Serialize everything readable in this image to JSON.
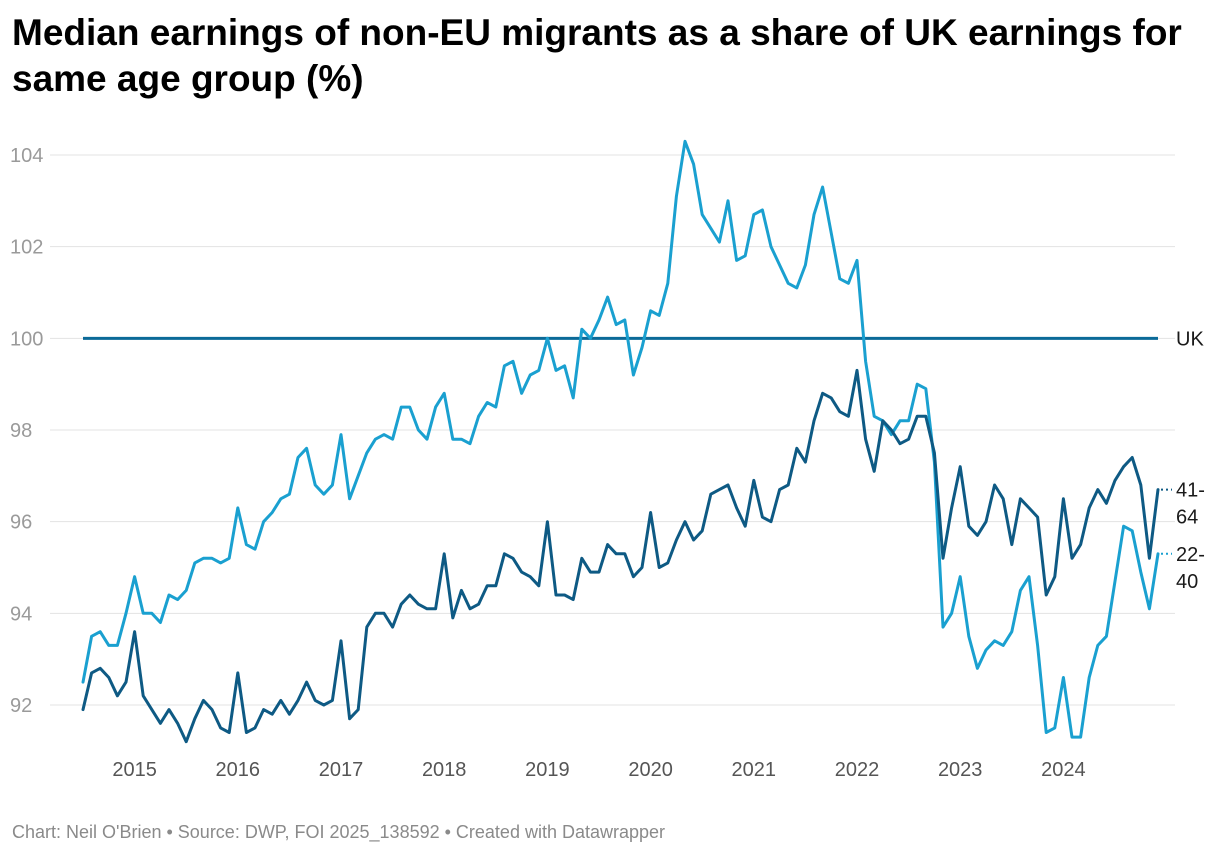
{
  "title": "Median earnings of non-EU migrants as a share of UK earnings for same age group (%)",
  "footer": "Chart: Neil O'Brien • Source: DWP, FOI 2025_138592 • Created with Datawrapper",
  "colors": {
    "series_41_64": "#0e5a84",
    "series_22_40": "#1aa0d0",
    "uk_line": "#0b6a98",
    "grid": "#e3e3e3"
  },
  "chart_data": {
    "type": "line",
    "title": "Median earnings of non-EU migrants as a share of UK earnings for same age group (%)",
    "xlabel": "",
    "ylabel": "",
    "x_start": "2014-07",
    "x_frequency": "monthly",
    "ylim": [
      91,
      104.5
    ],
    "yticks": [
      "92",
      "94",
      "96",
      "98",
      "100",
      "102",
      "104"
    ],
    "yticks_values": [
      92,
      94,
      96,
      98,
      100,
      102,
      104
    ],
    "xticks": [
      "2015",
      "2016",
      "2017",
      "2018",
      "2019",
      "2020",
      "2021",
      "2022",
      "2023",
      "2024"
    ],
    "reference_line": {
      "name": "UK",
      "label": "UK",
      "value": 100
    },
    "series": [
      {
        "name": "41-64",
        "label_top": "41-",
        "label_bottom": "64",
        "values": [
          91.9,
          92.7,
          92.8,
          92.6,
          92.2,
          92.5,
          93.6,
          92.2,
          91.9,
          91.6,
          91.9,
          91.6,
          91.2,
          91.7,
          92.1,
          91.9,
          91.5,
          91.4,
          92.7,
          91.4,
          91.5,
          91.9,
          91.8,
          92.1,
          91.8,
          92.1,
          92.5,
          92.1,
          92.0,
          92.1,
          93.4,
          91.7,
          91.9,
          93.7,
          94.0,
          94.0,
          93.7,
          94.2,
          94.4,
          94.2,
          94.1,
          94.1,
          95.3,
          93.9,
          94.5,
          94.1,
          94.2,
          94.6,
          94.6,
          95.3,
          95.2,
          94.9,
          94.8,
          94.6,
          96.0,
          94.4,
          94.4,
          94.3,
          95.2,
          94.9,
          94.9,
          95.5,
          95.3,
          95.3,
          94.8,
          95.0,
          96.2,
          95.0,
          95.1,
          95.6,
          96.0,
          95.6,
          95.8,
          96.6,
          96.7,
          96.8,
          96.3,
          95.9,
          96.9,
          96.1,
          96.0,
          96.7,
          96.8,
          97.6,
          97.3,
          98.2,
          98.8,
          98.7,
          98.4,
          98.3,
          99.3,
          97.8,
          97.1,
          98.2,
          98.0,
          97.7,
          97.8,
          98.3,
          98.3,
          97.5,
          95.2,
          96.3,
          97.2,
          95.9,
          95.7,
          96.0,
          96.8,
          96.5,
          95.5,
          96.5,
          96.3,
          96.1,
          94.4,
          94.8,
          96.5,
          95.2,
          95.5,
          96.3,
          96.7,
          96.4,
          96.9,
          97.2,
          97.4,
          96.8,
          95.2,
          96.7
        ]
      },
      {
        "name": "22-40",
        "label_top": "22-",
        "label_bottom": "40",
        "values": [
          92.5,
          93.5,
          93.6,
          93.3,
          93.3,
          94.0,
          94.8,
          94.0,
          94.0,
          93.8,
          94.4,
          94.3,
          94.5,
          95.1,
          95.2,
          95.2,
          95.1,
          95.2,
          96.3,
          95.5,
          95.4,
          96.0,
          96.2,
          96.5,
          96.6,
          97.4,
          97.6,
          96.8,
          96.6,
          96.8,
          97.9,
          96.5,
          97.0,
          97.5,
          97.8,
          97.9,
          97.8,
          98.5,
          98.5,
          98.0,
          97.8,
          98.5,
          98.8,
          97.8,
          97.8,
          97.7,
          98.3,
          98.6,
          98.5,
          99.4,
          99.5,
          98.8,
          99.2,
          99.3,
          100.0,
          99.3,
          99.4,
          98.7,
          100.2,
          100.0,
          100.4,
          100.9,
          100.3,
          100.4,
          99.2,
          99.8,
          100.6,
          100.5,
          101.2,
          103.1,
          104.3,
          103.8,
          102.7,
          102.4,
          102.1,
          103.0,
          101.7,
          101.8,
          102.7,
          102.8,
          102.0,
          101.6,
          101.2,
          101.1,
          101.6,
          102.7,
          103.3,
          102.3,
          101.3,
          101.2,
          101.7,
          99.5,
          98.3,
          98.2,
          97.9,
          98.2,
          98.2,
          99.0,
          98.9,
          97.3,
          93.7,
          94.0,
          94.8,
          93.5,
          92.8,
          93.2,
          93.4,
          93.3,
          93.6,
          94.5,
          94.8,
          93.3,
          91.4,
          91.5,
          92.6,
          91.3,
          91.3,
          92.6,
          93.3,
          93.5,
          94.7,
          95.9,
          95.8,
          94.9,
          94.1,
          95.3
        ]
      }
    ]
  }
}
